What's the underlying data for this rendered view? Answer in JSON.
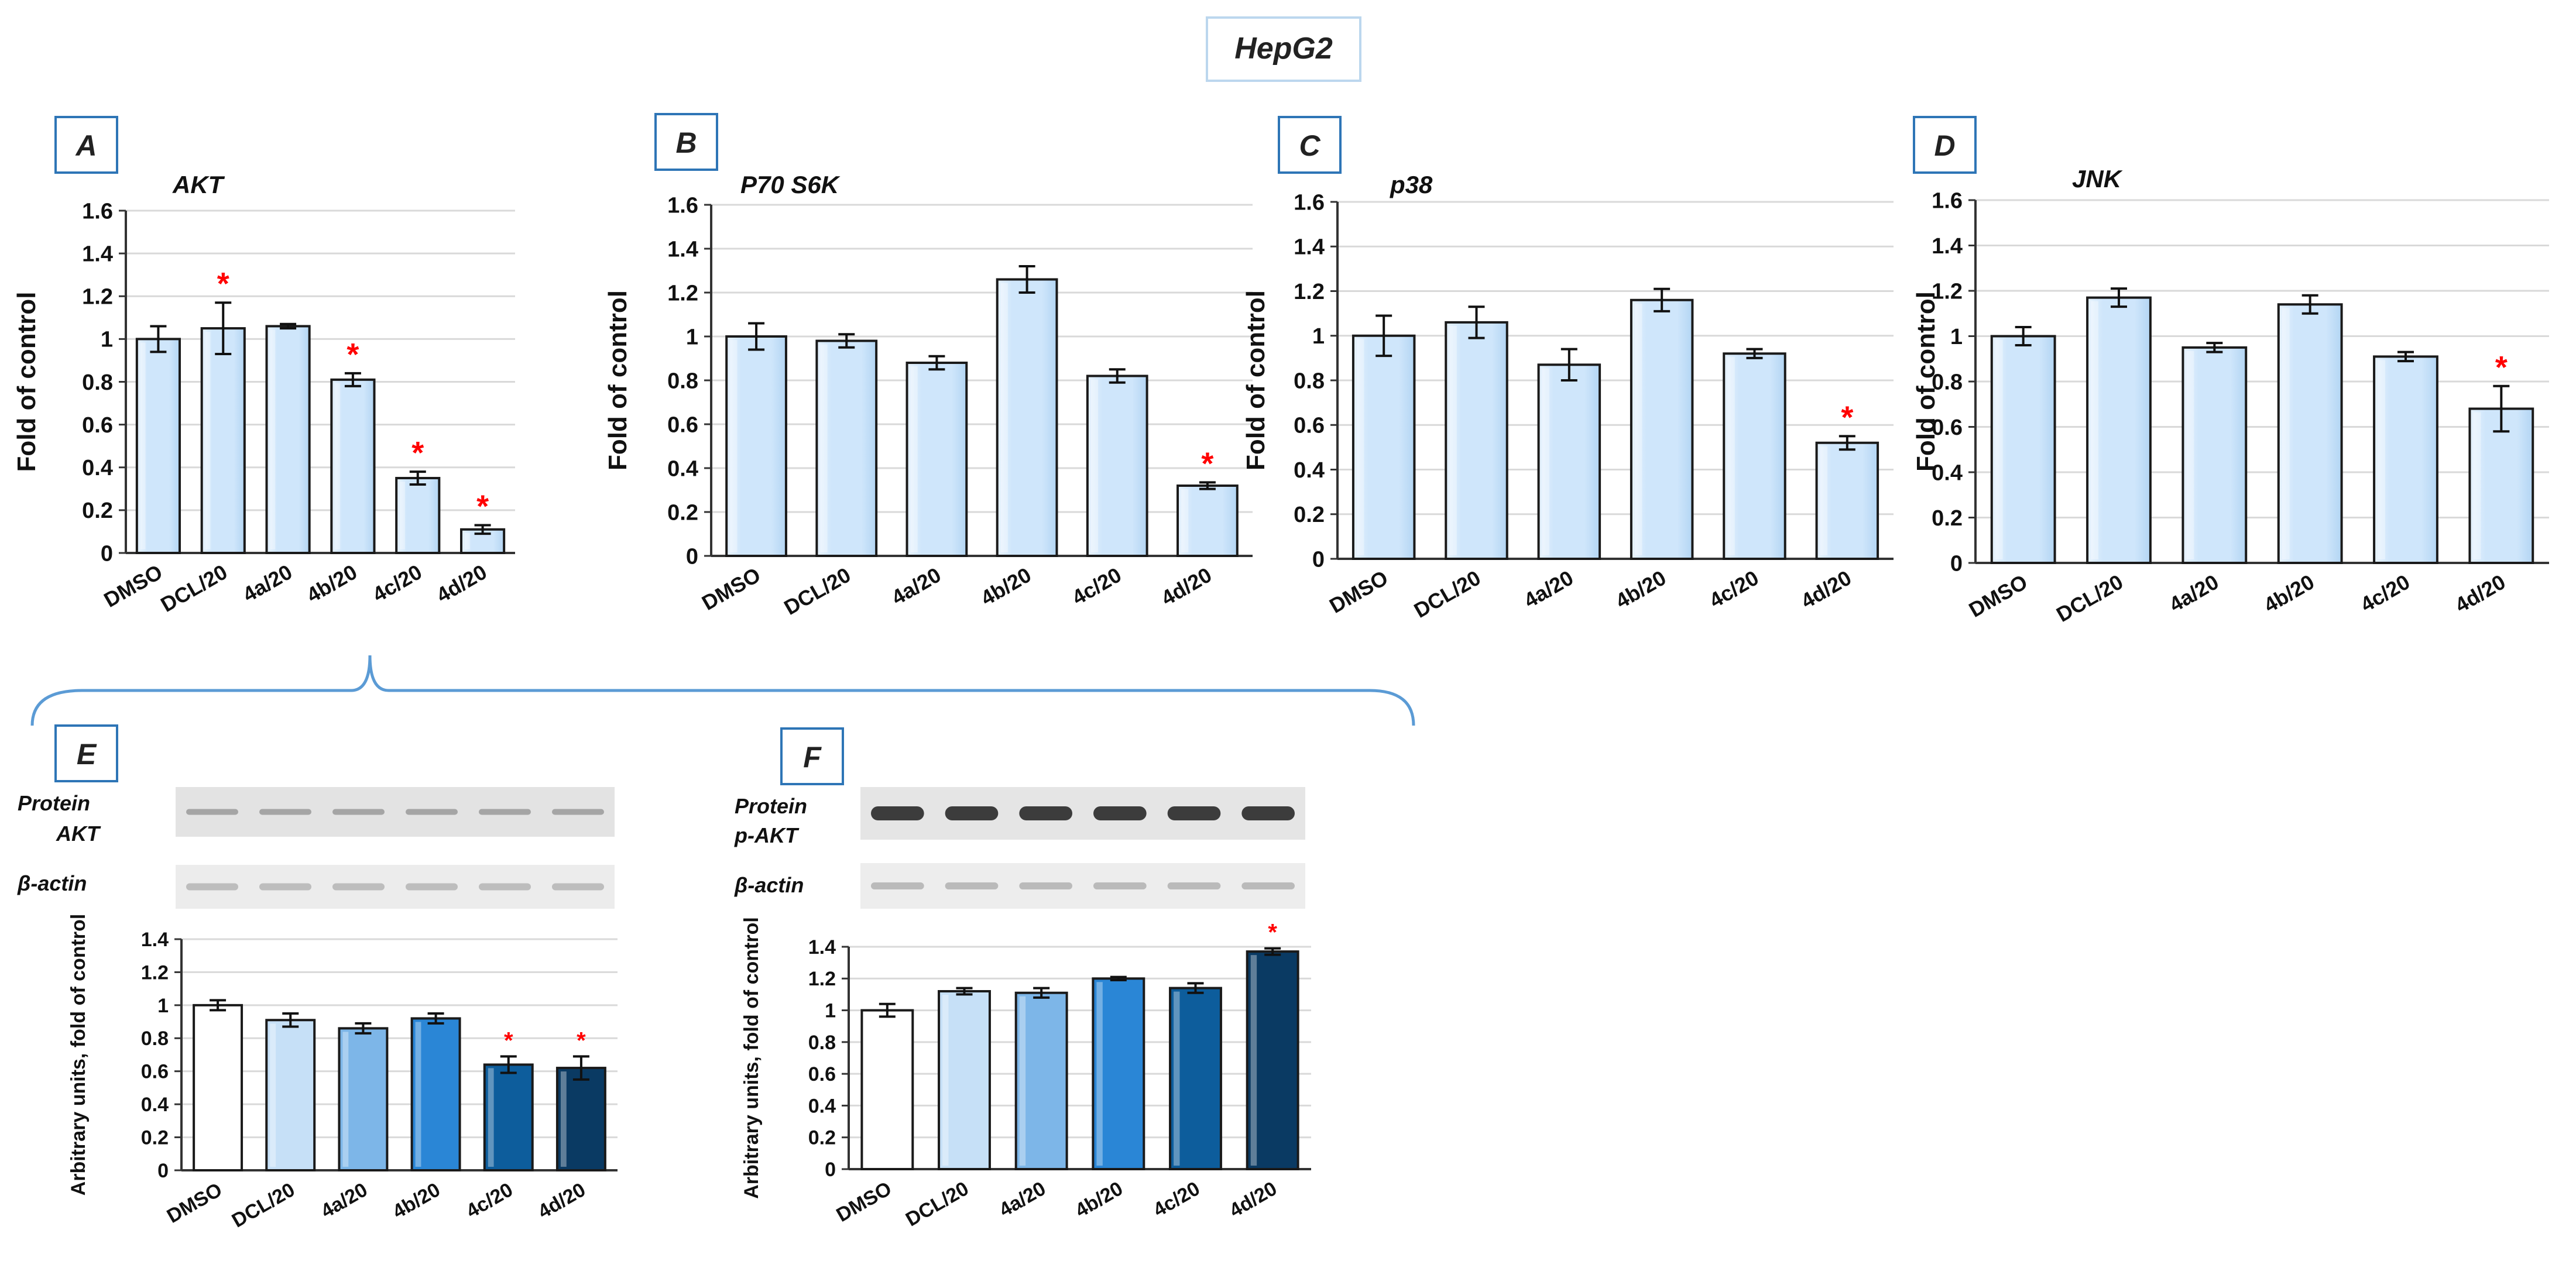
{
  "figure_title": "HepG2",
  "chart_data": [
    {
      "panel": "A",
      "type": "bar",
      "title": "AKT",
      "categories": [
        "DMSO",
        "DCL/20",
        "4a/20",
        "4b/20",
        "4c/20",
        "4d/20"
      ],
      "values": [
        1.0,
        1.05,
        1.06,
        0.81,
        0.35,
        0.11
      ],
      "errors": [
        0.06,
        0.12,
        0.01,
        0.03,
        0.03,
        0.02
      ],
      "significant": [
        false,
        true,
        false,
        true,
        true,
        true
      ],
      "ylabel": "Fold of control",
      "ylim": [
        0,
        1.6
      ],
      "yticks": [
        "0",
        "0.2",
        "0.4",
        "0.6",
        "0.8",
        "1",
        "1.2",
        "1.4",
        "1.6"
      ]
    },
    {
      "panel": "B",
      "type": "bar",
      "title": "P70 S6K",
      "categories": [
        "DMSO",
        "DCL/20",
        "4a/20",
        "4b/20",
        "4c/20",
        "4d/20"
      ],
      "values": [
        1.0,
        0.98,
        0.88,
        1.26,
        0.82,
        0.32
      ],
      "errors": [
        0.06,
        0.03,
        0.03,
        0.06,
        0.03,
        0.015
      ],
      "significant": [
        false,
        false,
        false,
        false,
        false,
        true
      ],
      "ylabel": "Fold of control",
      "ylim": [
        0,
        1.6
      ],
      "yticks": [
        "0",
        "0.2",
        "0.4",
        "0.6",
        "0.8",
        "1",
        "1.2",
        "1.4",
        "1.6"
      ]
    },
    {
      "panel": "C",
      "type": "bar",
      "title": "p38",
      "categories": [
        "DMSO",
        "DCL/20",
        "4a/20",
        "4b/20",
        "4c/20",
        "4d/20"
      ],
      "values": [
        1.0,
        1.06,
        0.87,
        1.16,
        0.92,
        0.52
      ],
      "errors": [
        0.09,
        0.07,
        0.07,
        0.05,
        0.02,
        0.03
      ],
      "significant": [
        false,
        false,
        false,
        false,
        false,
        true
      ],
      "ylabel": "Fold of control",
      "ylim": [
        0,
        1.6
      ],
      "yticks": [
        "0",
        "0.2",
        "0.4",
        "0.6",
        "0.8",
        "1",
        "1.2",
        "1.4",
        "1.6"
      ]
    },
    {
      "panel": "D",
      "type": "bar",
      "title": "JNK",
      "categories": [
        "DMSO",
        "DCL/20",
        "4a/20",
        "4b/20",
        "4c/20",
        "4d/20"
      ],
      "values": [
        1.0,
        1.17,
        0.95,
        1.14,
        0.91,
        0.68
      ],
      "errors": [
        0.04,
        0.04,
        0.02,
        0.04,
        0.02,
        0.1
      ],
      "significant": [
        false,
        false,
        false,
        false,
        false,
        true
      ],
      "ylabel": "Fold of control",
      "ylim": [
        0,
        1.6
      ],
      "yticks": [
        "0",
        "0.2",
        "0.4",
        "0.6",
        "0.8",
        "1",
        "1.2",
        "1.4",
        "1.6"
      ]
    },
    {
      "panel": "E",
      "type": "bar",
      "title": "",
      "categories": [
        "DMSO",
        "DCL/20",
        "4a/20",
        "4b/20",
        "4c/20",
        "4d/20"
      ],
      "values": [
        1.0,
        0.91,
        0.86,
        0.92,
        0.64,
        0.62
      ],
      "errors": [
        0.03,
        0.04,
        0.03,
        0.03,
        0.05,
        0.07
      ],
      "significant": [
        false,
        false,
        false,
        false,
        true,
        true
      ],
      "ylabel": "Arbitrary units, fold of control",
      "ylim": [
        0,
        1.4
      ],
      "yticks": [
        "0",
        "0.2",
        "0.4",
        "0.6",
        "0.8",
        "1",
        "1.2",
        "1.4"
      ],
      "blot_labels": [
        "Protein",
        "AKT",
        "β-actin"
      ]
    },
    {
      "panel": "F",
      "type": "bar",
      "title": "",
      "categories": [
        "DMSO",
        "DCL/20",
        "4a/20",
        "4b/20",
        "4c/20",
        "4d/20"
      ],
      "values": [
        1.0,
        1.12,
        1.11,
        1.2,
        1.14,
        1.37
      ],
      "errors": [
        0.04,
        0.02,
        0.03,
        0.01,
        0.03,
        0.02
      ],
      "significant": [
        false,
        false,
        false,
        false,
        false,
        true
      ],
      "ylabel": "Arbitrary units, fold of control",
      "ylim": [
        0,
        1.4
      ],
      "yticks": [
        "0",
        "0.2",
        "0.4",
        "0.6",
        "0.8",
        "1",
        "1.2",
        "1.4"
      ],
      "blot_labels": [
        "Protein",
        "p-AKT",
        "β-actin"
      ]
    }
  ],
  "significance_marker": "*",
  "colors": {
    "bar_light": "#cfe6fb",
    "bar_edge": "#1a1a1a",
    "grid": "#d9d9d9",
    "star": "#ff0000",
    "box_border": "#2e75b6",
    "brace": "#5b9bd5",
    "gradient": [
      "#ffffff",
      "#c6e0f7",
      "#7db6e8",
      "#2a86d6",
      "#0d5d9c",
      "#0a3a63"
    ]
  }
}
